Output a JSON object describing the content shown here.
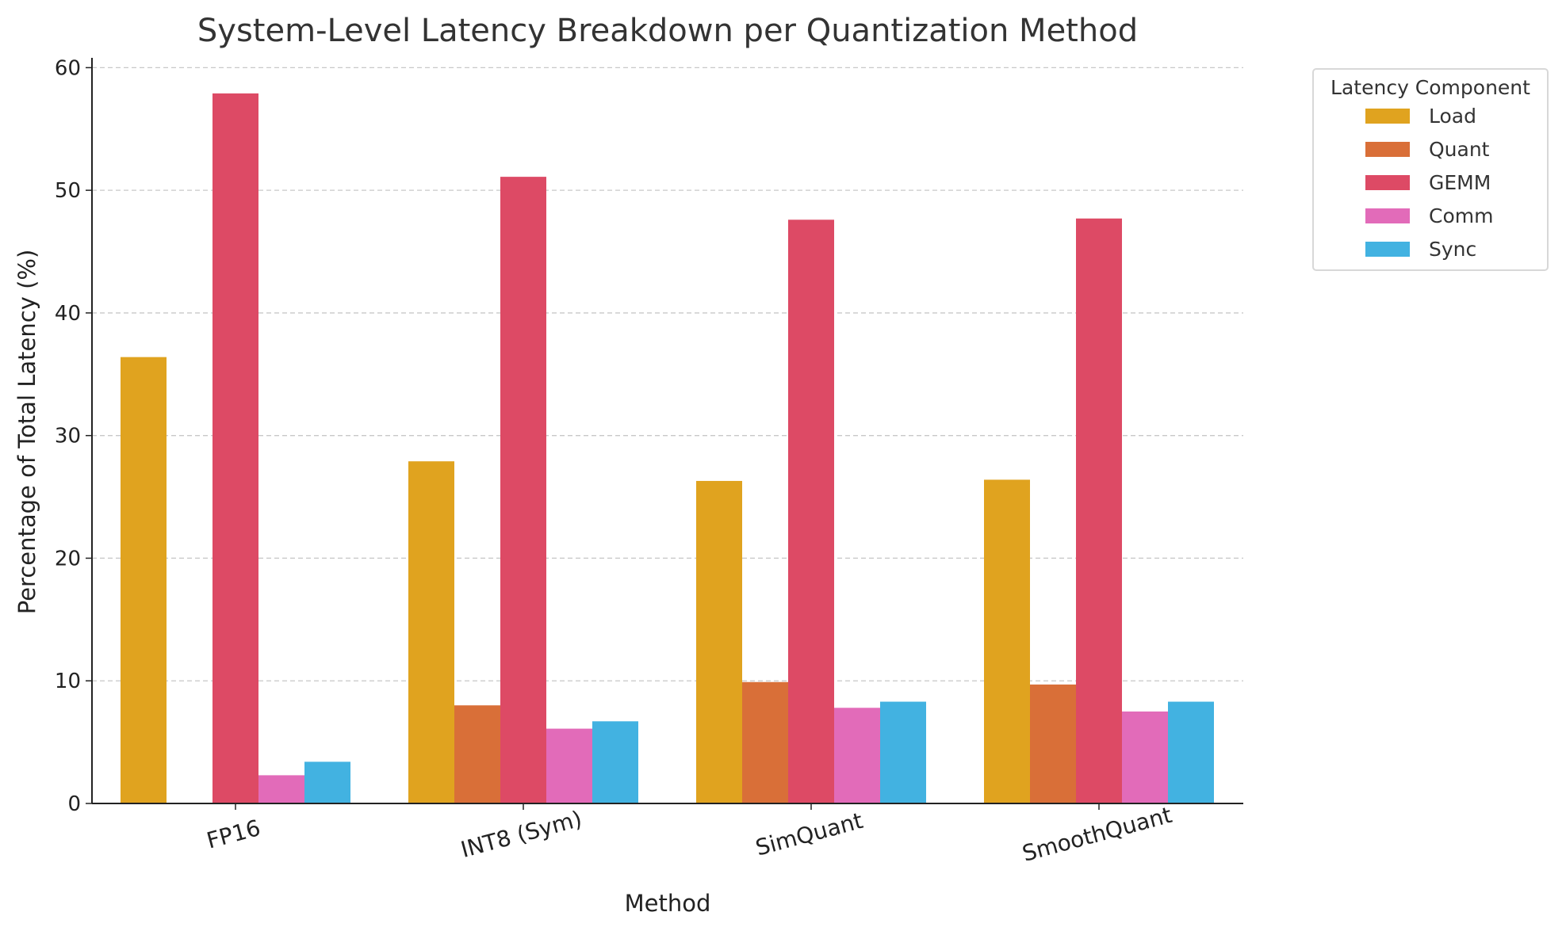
{
  "chart_data": {
    "type": "bar",
    "title": "System-Level Latency Breakdown per Quantization Method",
    "xlabel": "Method",
    "ylabel": "Percentage of Total Latency (%)",
    "categories": [
      "FP16",
      "INT8 (Sym)",
      "SimQuant",
      "SmoothQuant"
    ],
    "ylim": [
      0,
      60.8
    ],
    "yticks": [
      0,
      10,
      20,
      30,
      40,
      50,
      60
    ],
    "grid": "y-dashed",
    "legend": {
      "title": "Latency Component",
      "placement": "outside-top-right"
    },
    "series": [
      {
        "name": "Load",
        "color": "#e0a31f",
        "values": [
          36.4,
          27.9,
          26.3,
          26.4
        ]
      },
      {
        "name": "Quant",
        "color": "#d96f38",
        "values": [
          0,
          8.0,
          9.9,
          9.7
        ]
      },
      {
        "name": "GEMM",
        "color": "#dd4a65",
        "values": [
          57.9,
          51.1,
          47.6,
          47.7
        ]
      },
      {
        "name": "Comm",
        "color": "#e26bb9",
        "values": [
          2.3,
          6.1,
          7.8,
          7.5
        ]
      },
      {
        "name": "Sync",
        "color": "#42b2e1",
        "values": [
          3.4,
          6.7,
          8.3,
          8.3
        ]
      }
    ]
  }
}
